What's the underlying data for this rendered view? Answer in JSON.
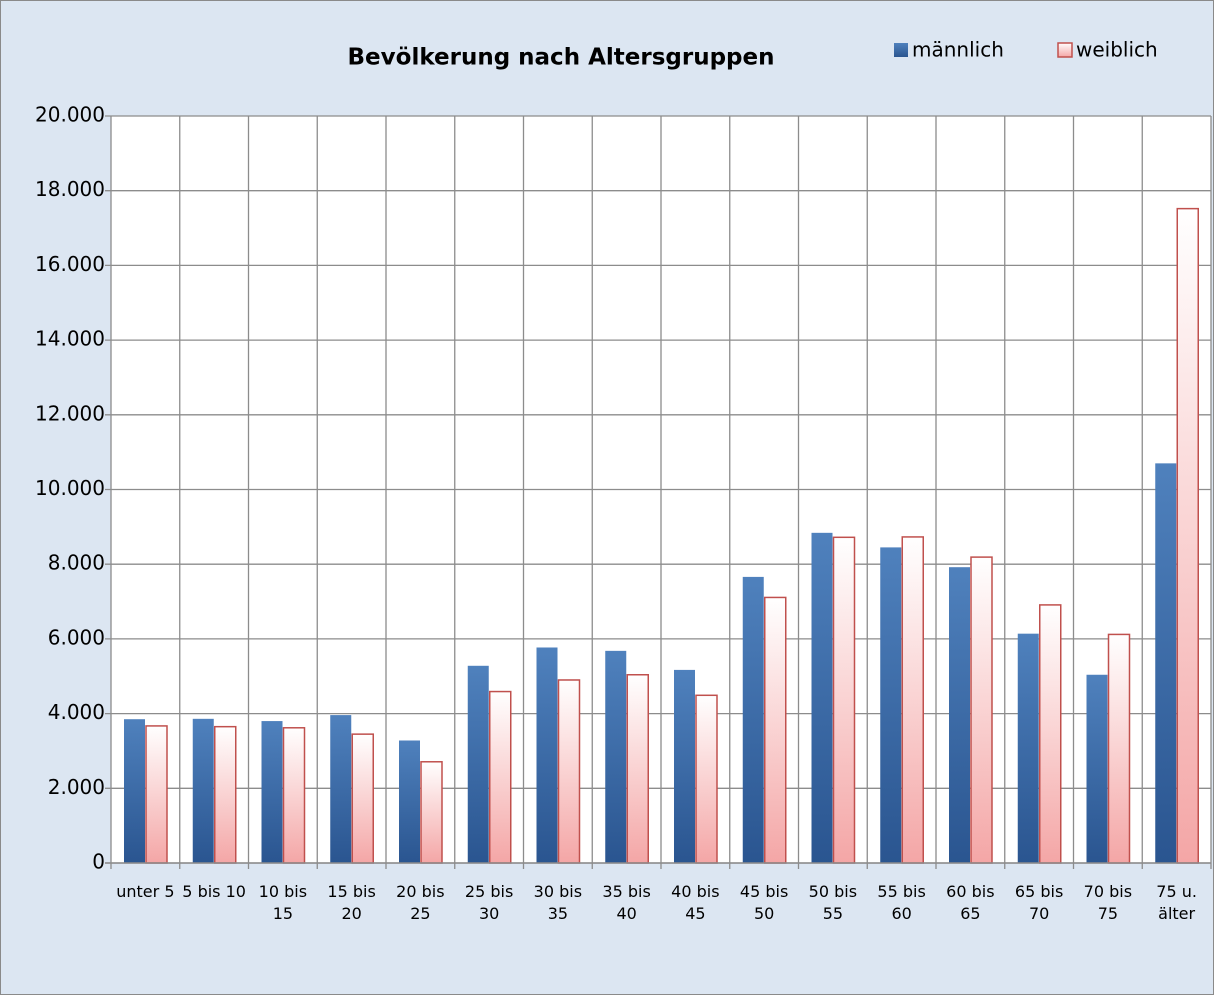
{
  "chart_data": {
    "type": "bar",
    "title": "Bevölkerung nach Altersgruppen",
    "categories": [
      "unter 5",
      "5 bis 10",
      "10 bis 15",
      "15 bis 20",
      "20 bis 25",
      "25 bis 30",
      "30 bis 35",
      "35 bis 40",
      "40 bis 45",
      "45 bis 50",
      "50 bis 55",
      "55 bis 60",
      "60 bis 65",
      "65 bis 70",
      "70 bis 75",
      "75 u. älter"
    ],
    "series": [
      {
        "name": "männlich",
        "color": "#4f81bd",
        "values": [
          3850,
          3860,
          3800,
          3960,
          3280,
          5280,
          5770,
          5680,
          5170,
          7660,
          8840,
          8450,
          7920,
          6140,
          5040,
          10700
        ]
      },
      {
        "name": "weiblich",
        "color": "#f4a6a6",
        "values": [
          3670,
          3650,
          3620,
          3450,
          2710,
          4590,
          4900,
          5040,
          4490,
          7110,
          8720,
          8730,
          8190,
          6910,
          6120,
          17520
        ]
      }
    ],
    "ylim": [
      0,
      20000
    ],
    "yticks": [
      0,
      {
        "value": 2000,
        "label": "2.000"
      },
      {
        "value": 4000,
        "label": "4.000"
      },
      {
        "value": 6000,
        "label": "6.000"
      },
      {
        "value": 8000,
        "label": "8.000"
      },
      {
        "value": 10000,
        "label": "10.000"
      },
      {
        "value": 12000,
        "label": "12.000"
      },
      {
        "value": 14000,
        "label": "14.000"
      },
      {
        "value": 16000,
        "label": "16.000"
      },
      {
        "value": 18000,
        "label": "18.000"
      },
      {
        "value": 20000,
        "label": "20.000"
      }
    ],
    "grid": true,
    "legend": "top-right"
  }
}
